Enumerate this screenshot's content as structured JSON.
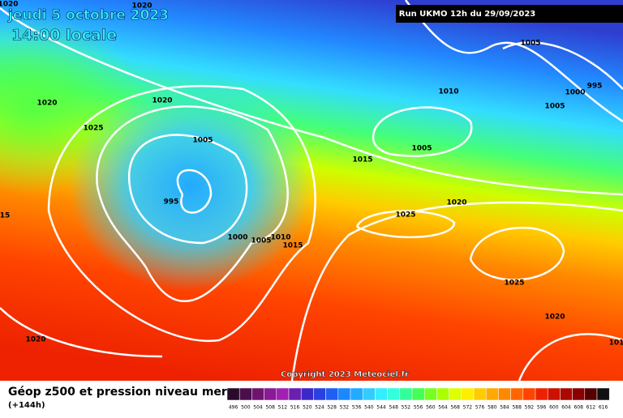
{
  "header": {
    "date": "jeudi 5 octobre 2023",
    "time": "14:00 locale",
    "run": "Run UKMO 12h du 29/09/2023"
  },
  "isobar_labels": [
    1020,
    1020,
    1020,
    1020,
    1025,
    1005,
    995,
    1000,
    1005,
    1010,
    1015,
    1015,
    1010,
    1005,
    995,
    1000,
    1005,
    1005,
    1020,
    1025,
    1025,
    1020,
    1020,
    15,
    101
  ],
  "copyright": "Copyright 2023 Meteociel.fr",
  "footer": {
    "title": "Géop z500 et pression niveau mer",
    "lead": "(+144h)"
  },
  "colorbar": [
    {
      "label": 496,
      "color": "#2a0a2a"
    },
    {
      "label": 500,
      "color": "#4a0f4a"
    },
    {
      "label": 504,
      "color": "#6e1470"
    },
    {
      "label": 508,
      "color": "#8a1a96"
    },
    {
      "label": 512,
      "color": "#a020b4"
    },
    {
      "label": 516,
      "color": "#6a1fb0"
    },
    {
      "label": 520,
      "color": "#3c28c8"
    },
    {
      "label": 524,
      "color": "#2a40e0"
    },
    {
      "label": 528,
      "color": "#2060f0"
    },
    {
      "label": 532,
      "color": "#1a88ff"
    },
    {
      "label": 536,
      "color": "#22aaff"
    },
    {
      "label": 540,
      "color": "#33ccff"
    },
    {
      "label": 544,
      "color": "#33eeff"
    },
    {
      "label": 548,
      "color": "#33ffdd"
    },
    {
      "label": 552,
      "color": "#33ff99"
    },
    {
      "label": 556,
      "color": "#44ff55"
    },
    {
      "label": 560,
      "color": "#77ff22"
    },
    {
      "label": 564,
      "color": "#aaff00"
    },
    {
      "label": 568,
      "color": "#ddff00"
    },
    {
      "label": 572,
      "color": "#ffee00"
    },
    {
      "label": 576,
      "color": "#ffcc00"
    },
    {
      "label": 580,
      "color": "#ffaa00"
    },
    {
      "label": 584,
      "color": "#ff8800"
    },
    {
      "label": 588,
      "color": "#ff6600"
    },
    {
      "label": 592,
      "color": "#ff4400"
    },
    {
      "label": 596,
      "color": "#ee2200"
    },
    {
      "label": 600,
      "color": "#cc1100"
    },
    {
      "label": 604,
      "color": "#aa0800"
    },
    {
      "label": 608,
      "color": "#880000"
    },
    {
      "label": 612,
      "color": "#550000"
    },
    {
      "label": 616,
      "color": "#111111"
    }
  ]
}
